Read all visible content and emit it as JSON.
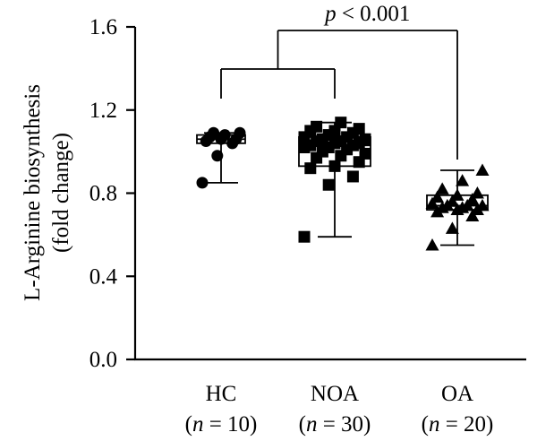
{
  "chart_data": {
    "type": "box",
    "title": "",
    "ylabel_line1": "L-Arginine biosynthesis",
    "ylabel_line2": "(fold change)",
    "xlabel": "",
    "ylim": [
      0.0,
      1.6
    ],
    "yticks": [
      0.0,
      0.4,
      0.8,
      1.2,
      1.6
    ],
    "ytick_labels": [
      "0.0",
      "0.4",
      "0.8",
      "1.2",
      "1.6"
    ],
    "grid": false,
    "legend": "none",
    "groups": [
      {
        "name": "HC",
        "n_label": "(n = 10)",
        "n_prefix": "(",
        "n_var": "n",
        "n_suffix": " = 10)",
        "marker": "circle",
        "whisker_min": 0.85,
        "q1": 1.04,
        "median": 1.06,
        "q3": 1.08,
        "whisker_max": 1.09,
        "points": [
          0.85,
          0.98,
          1.04,
          1.05,
          1.06,
          1.06,
          1.07,
          1.08,
          1.09,
          1.09
        ]
      },
      {
        "name": "NOA",
        "n_label": "(n = 30)",
        "n_prefix": "(",
        "n_var": "n",
        "n_suffix": " = 30)",
        "marker": "square",
        "whisker_min": 0.59,
        "q1": 0.93,
        "median": 1.03,
        "q3": 1.07,
        "whisker_max": 1.14,
        "points": [
          0.59,
          0.84,
          0.88,
          0.92,
          0.93,
          0.95,
          0.97,
          0.98,
          0.99,
          1.0,
          1.01,
          1.02,
          1.02,
          1.03,
          1.03,
          1.04,
          1.04,
          1.05,
          1.05,
          1.06,
          1.06,
          1.07,
          1.07,
          1.08,
          1.09,
          1.1,
          1.1,
          1.11,
          1.12,
          1.14
        ]
      },
      {
        "name": "OA",
        "n_label": "(n = 20)",
        "n_prefix": "(",
        "n_var": "n",
        "n_suffix": " = 20)",
        "marker": "triangle",
        "whisker_min": 0.55,
        "q1": 0.72,
        "median": 0.74,
        "q3": 0.79,
        "whisker_max": 0.91,
        "points": [
          0.55,
          0.63,
          0.69,
          0.71,
          0.72,
          0.72,
          0.73,
          0.73,
          0.74,
          0.74,
          0.74,
          0.75,
          0.76,
          0.77,
          0.78,
          0.79,
          0.8,
          0.82,
          0.86,
          0.91
        ]
      }
    ],
    "significance": {
      "text_italic": "p",
      "text_rest": " < 0.001",
      "label": "p < 0.001"
    }
  }
}
